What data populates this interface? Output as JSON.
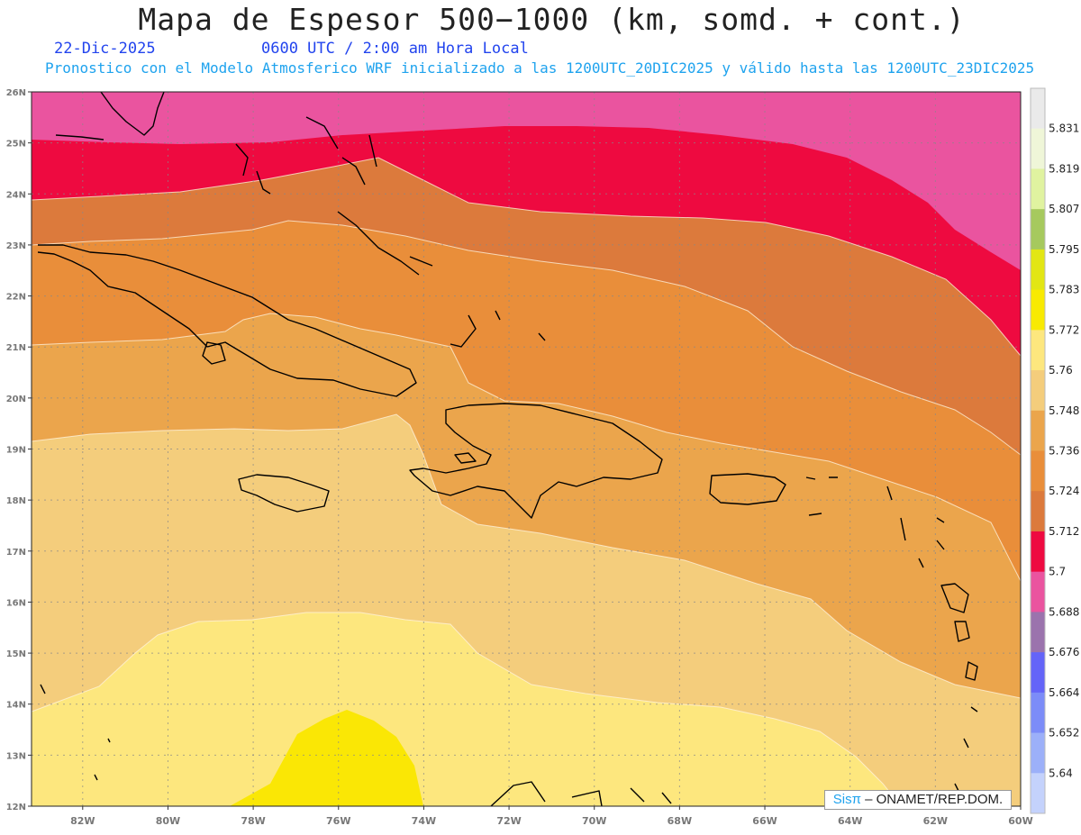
{
  "header": {
    "title": "Mapa de Espesor 500−1000 (km, somd. + cont.)",
    "date": "22-Dic-2025",
    "time": "0600 UTC / 2:00 am Hora Local",
    "description": "Pronostico con el Modelo Atmosferico WRF inicializado a las 1200UTC_20DIC2025 y válido hasta las  1200UTC_23DIC2025"
  },
  "map": {
    "lon_range": [
      -83.2,
      -60
    ],
    "lat_range": [
      12,
      26
    ],
    "lon_ticks": [
      "82W",
      "80W",
      "78W",
      "76W",
      "74W",
      "72W",
      "70W",
      "68W",
      "66W",
      "64W",
      "62W",
      "60W"
    ],
    "lat_ticks": [
      "12N",
      "13N",
      "14N",
      "15N",
      "16N",
      "17N",
      "18N",
      "19N",
      "20N",
      "21N",
      "22N",
      "23N",
      "24N",
      "25N",
      "26N"
    ],
    "gridlines": true,
    "fill_colors": {
      "over_5.700": "#ea549f",
      "5.700_5.712": "#ee0a40",
      "5.712_5.724": "#dc7a3c",
      "5.724_5.736": "#e98e3a",
      "5.736_5.748": "#eba54c",
      "5.748_5.760": "#f4cd7c",
      "5.760_5.772": "#fde77e",
      "5.772_5.783": "#fae705",
      "coast": "#000000",
      "contour": "#fff4e0"
    }
  },
  "colorbar": {
    "labels": [
      "5.64",
      "5.652",
      "5.664",
      "5.676",
      "5.688",
      "5.7",
      "5.712",
      "5.724",
      "5.736",
      "5.748",
      "5.76",
      "5.772",
      "5.783",
      "5.795",
      "5.807",
      "5.819",
      "5.831"
    ],
    "colors": [
      "#eaeaea",
      "#eff6d8",
      "#e0f3a0",
      "#a6c95e",
      "#e2e614",
      "#f8ea02",
      "#fde77e",
      "#f4cd7c",
      "#eba54c",
      "#e98e3a",
      "#dc7a3c",
      "#ee0a40",
      "#ea549f",
      "#9b73ad",
      "#6464f8",
      "#7c8cf8",
      "#9cb0f9",
      "#c4d2fc"
    ]
  },
  "credit": {
    "brand": "Sisπ",
    "org": "– ONAMET/REP.DOM."
  }
}
